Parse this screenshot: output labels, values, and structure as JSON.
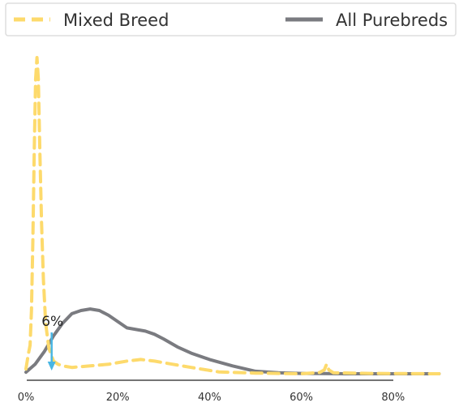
{
  "chart_data": {
    "type": "line",
    "title": "",
    "xlabel": "",
    "ylabel": "",
    "xlim": [
      0,
      90
    ],
    "x_ticks": [
      0,
      20,
      40,
      60,
      80
    ],
    "x_tick_labels": [
      "0%",
      "20%",
      "40%",
      "60%",
      "80%"
    ],
    "grid": false,
    "legend_position": "top",
    "series": [
      {
        "name": "Mixed Breed",
        "color": "#FDDA6C",
        "style": "dashed",
        "points": [
          [
            0,
            0.015
          ],
          [
            0.5,
            0.06
          ],
          [
            0.9,
            0.09
          ],
          [
            1.2,
            0.2
          ],
          [
            1.5,
            0.42
          ],
          [
            1.8,
            0.7
          ],
          [
            2.1,
            0.93
          ],
          [
            2.4,
            1.0
          ],
          [
            2.7,
            0.93
          ],
          [
            3.0,
            0.72
          ],
          [
            3.4,
            0.48
          ],
          [
            3.8,
            0.3
          ],
          [
            4.3,
            0.16
          ],
          [
            5.0,
            0.08
          ],
          [
            6.0,
            0.04
          ],
          [
            7.0,
            0.03
          ],
          [
            8.0,
            0.025
          ],
          [
            10,
            0.02
          ],
          [
            14,
            0.025
          ],
          [
            18,
            0.03
          ],
          [
            22,
            0.04
          ],
          [
            25,
            0.045
          ],
          [
            28,
            0.04
          ],
          [
            32,
            0.03
          ],
          [
            36,
            0.02
          ],
          [
            42,
            0.006
          ],
          [
            50,
            0.002
          ],
          [
            60,
            0.0
          ],
          [
            64,
            0.004
          ],
          [
            65,
            0.012
          ],
          [
            65.5,
            0.03
          ],
          [
            66,
            0.012
          ],
          [
            67,
            0.003
          ],
          [
            75,
            0.001
          ],
          [
            90,
            0.0
          ]
        ]
      },
      {
        "name": "All Purebreds",
        "color": "#7A7B80",
        "style": "solid",
        "points": [
          [
            0,
            0.005
          ],
          [
            2,
            0.03
          ],
          [
            4,
            0.07
          ],
          [
            6,
            0.12
          ],
          [
            8,
            0.16
          ],
          [
            10,
            0.19
          ],
          [
            12,
            0.2
          ],
          [
            14,
            0.205
          ],
          [
            16,
            0.2
          ],
          [
            18,
            0.185
          ],
          [
            20,
            0.165
          ],
          [
            22,
            0.145
          ],
          [
            24,
            0.14
          ],
          [
            26,
            0.135
          ],
          [
            28,
            0.125
          ],
          [
            30,
            0.11
          ],
          [
            33,
            0.085
          ],
          [
            36,
            0.065
          ],
          [
            40,
            0.045
          ],
          [
            45,
            0.025
          ],
          [
            50,
            0.008
          ],
          [
            55,
            0.003
          ],
          [
            60,
            0.001
          ],
          [
            70,
            0.0
          ],
          [
            80,
            0.0
          ],
          [
            90,
            0.0
          ]
        ]
      }
    ],
    "annotations": [
      {
        "text": "6%",
        "x": 5.6,
        "arrow_color": "#49B6E3"
      }
    ]
  }
}
